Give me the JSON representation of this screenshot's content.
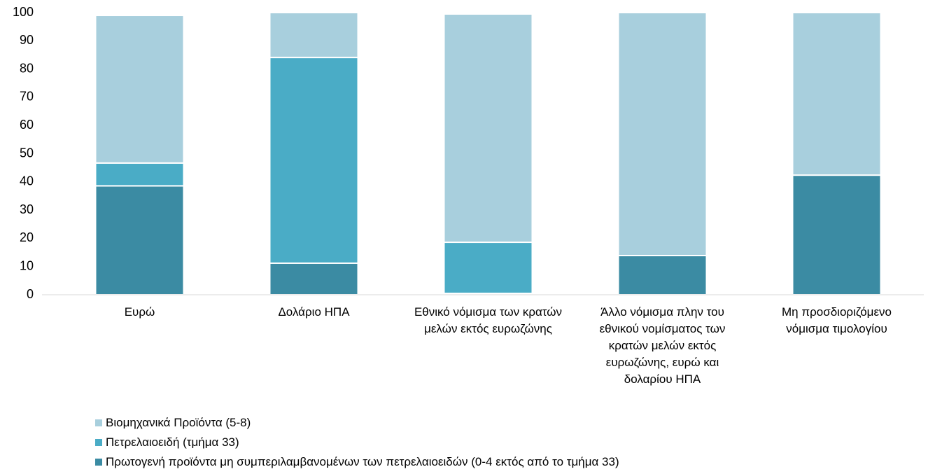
{
  "chart_data": {
    "type": "stacked_bar",
    "categories": [
      "Ευρώ",
      "Δολάριο ΗΠΑ",
      "Εθνικό νόμισμα των κρατών μελών εκτός ευρωζώνης",
      "Άλλο νόμισμα πλην του εθνικού νομίσματος των κρατών μελών εκτός ευρωζώνης, ευρώ και δολαρίου ΗΠΑ",
      "Μη προσδιοριζόμενο νόμισμα τιμολογίου"
    ],
    "series": [
      {
        "name": "Βιομηχανικά Προϊόντα  (5-8)",
        "color": "#a8cfdd",
        "values": [
          52.3,
          15.9,
          80.9,
          86.1,
          57.6
        ]
      },
      {
        "name": "Πετρελαιοειδή (τμήμα 33)",
        "color": "#4aacc6",
        "values": [
          8.1,
          72.9,
          18.1,
          0,
          0
        ]
      },
      {
        "name": "Πρωτογενή προϊόντα μη συμπεριλαμβανομένων των πετρελαιοειδών (0-4 εκτός από το τμήμα 33)",
        "color": "#3b8ba3",
        "values": [
          38.6,
          11.2,
          0.5,
          13.9,
          42.4
        ]
      }
    ],
    "ylim": [
      0,
      100
    ],
    "yticks": [
      0,
      10,
      20,
      30,
      40,
      50,
      60,
      70,
      80,
      90,
      100
    ],
    "legend": "bottom-left"
  }
}
